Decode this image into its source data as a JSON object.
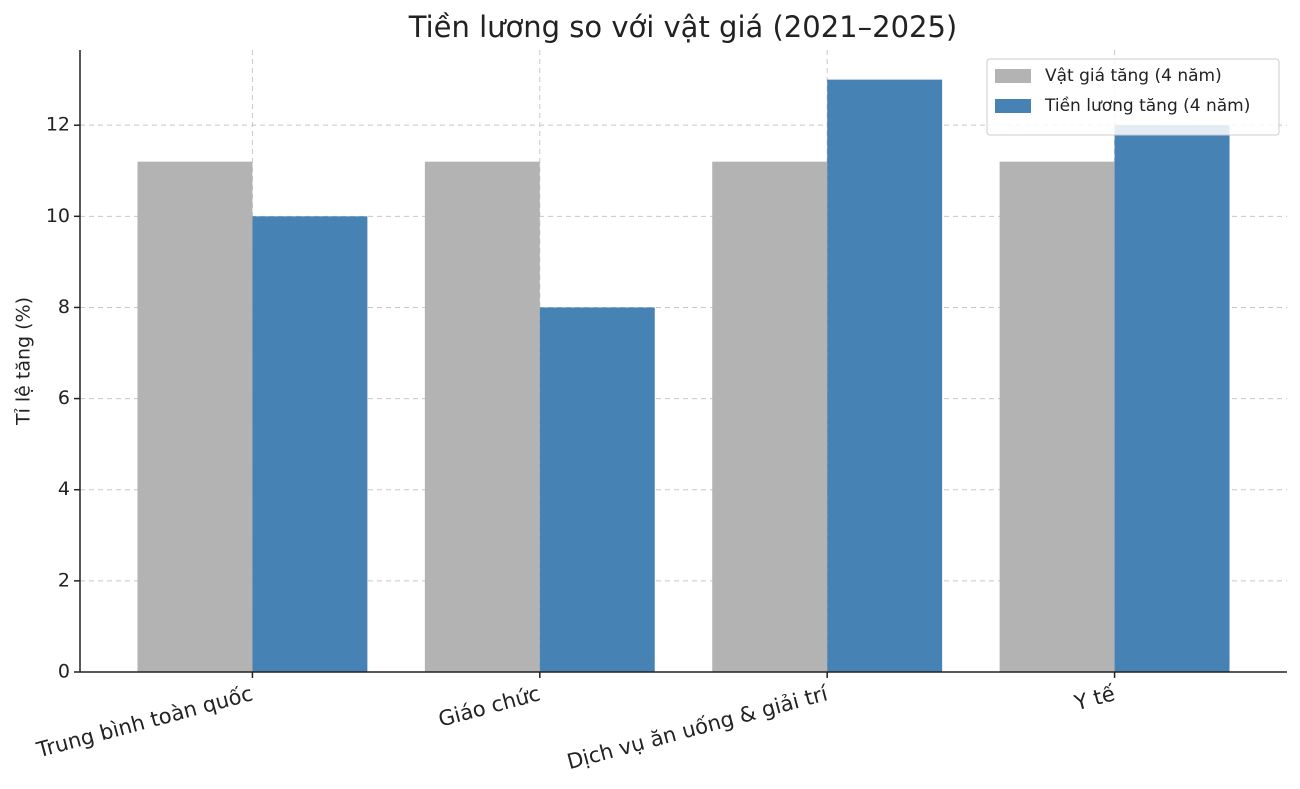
{
  "chart_data": {
    "type": "bar",
    "title": "Tiền lương so với vật giá (2021–2025)",
    "y_label": "Tỉ lệ tăng (%)",
    "categories": [
      "Trung bình toàn quốc",
      "Giáo chức",
      "Dịch vụ ăn uống & giải trí",
      "Y tế"
    ],
    "series": [
      {
        "name": "Vật giá tăng (4 năm)",
        "color": "#b3b3b3",
        "values": [
          11.2,
          11.2,
          11.2,
          11.2
        ]
      },
      {
        "name": "Tiền lương tăng (4 năm)",
        "color": "#4682b4",
        "values": [
          10,
          8,
          13,
          12
        ]
      }
    ],
    "ylim": [
      0,
      13.65
    ],
    "yticks": [
      0,
      2,
      4,
      6,
      8,
      10,
      12
    ],
    "grid": true,
    "legend": "upper right"
  }
}
